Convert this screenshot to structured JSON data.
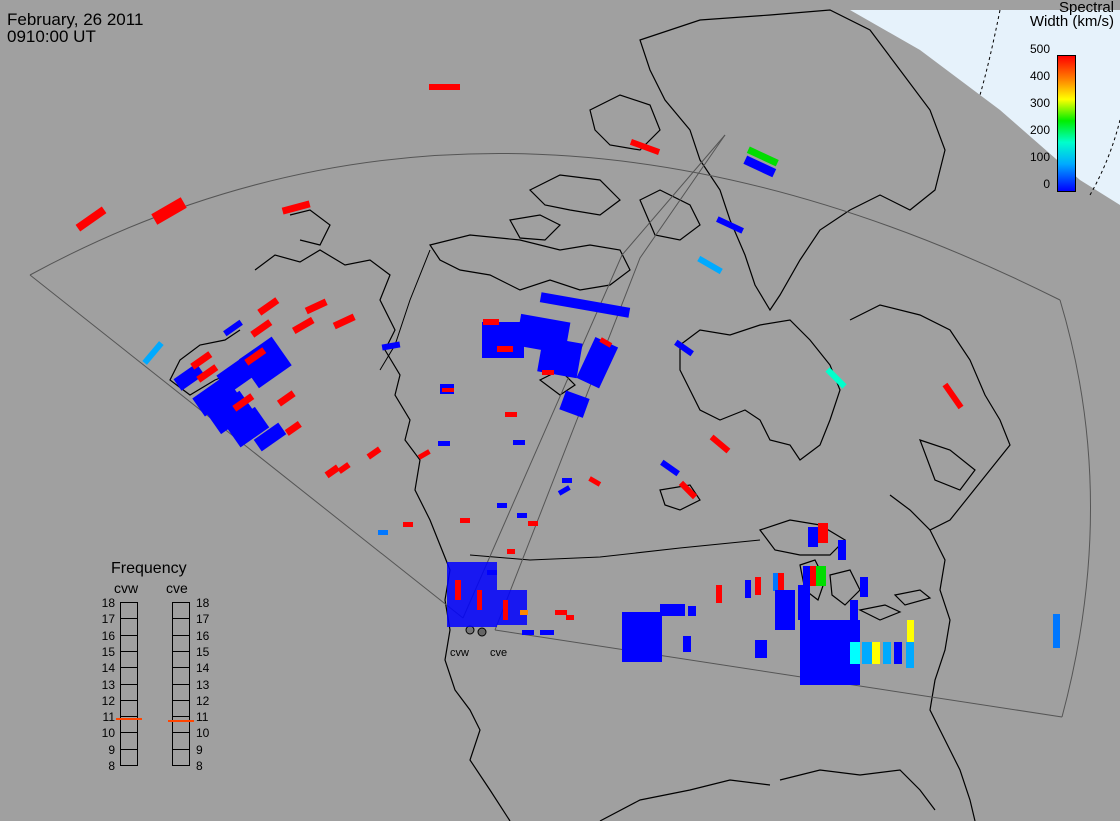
{
  "header": {
    "date": "February, 26 2011",
    "time": "0910:00 UT"
  },
  "colorbar": {
    "title_line1": "Spectral",
    "title_line2": "Width (km/s)",
    "ticks": [
      "500",
      "400",
      "300",
      "200",
      "100",
      "0"
    ],
    "range": [
      0,
      500
    ],
    "colors": [
      "#0000ff",
      "#00aaff",
      "#00ffcc",
      "#00ee00",
      "#ffff00",
      "#ff8800",
      "#ff0000"
    ]
  },
  "radars": {
    "west_label": "cvw",
    "east_label": "cve"
  },
  "frequency": {
    "title": "Frequency",
    "col_west": "cvw",
    "col_east": "cve",
    "scale": [
      "18",
      "17",
      "16",
      "15",
      "14",
      "13",
      "12",
      "11",
      "10",
      "9",
      "8"
    ],
    "cvw_mhz": 10.8,
    "cve_mhz": 10.7
  },
  "colors": {
    "background": "#a0a0a0",
    "coast": "#000000",
    "fov": "#505050",
    "daylight": "#e6f2fb"
  }
}
